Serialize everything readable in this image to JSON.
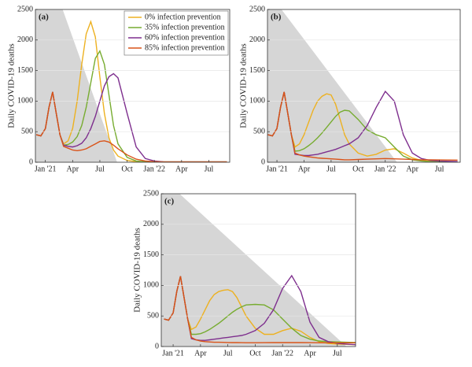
{
  "chart_data": [
    {
      "type": "line",
      "panel_label": "(a)",
      "y_label": "Daily COVID-19 deaths",
      "grid": true,
      "legend": "upper right",
      "xlim": [
        -1.1,
        20.3
      ],
      "ylim": [
        0,
        2500
      ],
      "yticks": [
        0,
        500,
        1000,
        1500,
        2000,
        2500
      ],
      "xticks": [
        {
          "value": 0,
          "label": "Jan '21"
        },
        {
          "value": 3,
          "label": "Apr"
        },
        {
          "value": 6,
          "label": "Jul"
        },
        {
          "value": 9,
          "label": "Oct"
        },
        {
          "value": 12,
          "label": "Jan '22"
        },
        {
          "value": 15,
          "label": "Apr"
        },
        {
          "value": 18,
          "label": "Jul"
        }
      ],
      "shade": {
        "color": "#d6d6d6",
        "x": [
          1.9,
          7.9
        ],
        "y": [
          2500,
          0
        ]
      },
      "x": [
        -1,
        -0.5,
        0,
        0.4,
        0.8,
        1.2,
        1.6,
        2,
        2.5,
        3,
        3.5,
        4,
        4.5,
        5,
        5.5,
        6,
        6.5,
        7,
        7.5,
        8,
        9,
        10,
        11,
        12,
        13,
        14,
        15,
        16,
        17,
        18,
        19,
        20
      ],
      "series": [
        {
          "name": "0% infection prevention",
          "color": "#EDB120",
          "values": [
            450,
            430,
            550,
            900,
            1150,
            800,
            450,
            300,
            350,
            550,
            1000,
            1600,
            2100,
            2300,
            2050,
            1400,
            800,
            400,
            200,
            100,
            30,
            10,
            5,
            5,
            5,
            5,
            5,
            5,
            5,
            5,
            5,
            5
          ]
        },
        {
          "name": "35% infection prevention",
          "color": "#77AC30",
          "values": [
            450,
            430,
            550,
            900,
            1150,
            800,
            450,
            280,
            290,
            330,
            420,
            600,
            900,
            1300,
            1700,
            1820,
            1600,
            1100,
            600,
            300,
            80,
            20,
            8,
            5,
            5,
            5,
            5,
            5,
            5,
            5,
            5,
            5
          ]
        },
        {
          "name": "60% infection prevention",
          "color": "#7E2F8E",
          "values": [
            450,
            430,
            550,
            900,
            1150,
            800,
            450,
            280,
            260,
            250,
            270,
            310,
            400,
            550,
            750,
            1000,
            1250,
            1400,
            1450,
            1380,
            800,
            250,
            60,
            20,
            8,
            5,
            5,
            5,
            5,
            5,
            5,
            5
          ]
        },
        {
          "name": "85% infection prevention",
          "color": "#D95319",
          "values": [
            450,
            430,
            550,
            900,
            1150,
            800,
            450,
            260,
            230,
            200,
            190,
            200,
            220,
            260,
            300,
            340,
            350,
            330,
            280,
            220,
            120,
            50,
            20,
            10,
            5,
            5,
            5,
            5,
            5,
            5,
            5,
            5
          ]
        }
      ]
    },
    {
      "type": "line",
      "panel_label": "(b)",
      "y_label": "Daily COVID-19 deaths",
      "grid": true,
      "xlim": [
        -1.05,
        20.3
      ],
      "ylim": [
        0,
        2500
      ],
      "yticks": [
        0,
        500,
        1000,
        1500,
        2000,
        2500
      ],
      "xticks": [
        {
          "value": 0,
          "label": "Jan '21"
        },
        {
          "value": 3,
          "label": "Apr"
        },
        {
          "value": 6,
          "label": "Jul"
        },
        {
          "value": 9,
          "label": "Oct"
        },
        {
          "value": 12,
          "label": "Jan '22"
        },
        {
          "value": 15,
          "label": "Apr"
        },
        {
          "value": 18,
          "label": "Jul"
        }
      ],
      "shade": {
        "color": "#d6d6d6",
        "x": [
          0.5,
          13.3
        ],
        "y": [
          2500,
          0
        ]
      },
      "x": [
        -1,
        -0.5,
        0,
        0.4,
        0.8,
        1.2,
        1.6,
        2,
        2.5,
        3,
        3.5,
        4,
        4.5,
        5,
        5.5,
        6,
        6.5,
        7,
        7.5,
        8,
        9,
        10,
        11,
        12,
        13,
        14,
        15,
        16,
        17,
        18,
        19,
        20
      ],
      "series": [
        {
          "color": "#EDB120",
          "values": [
            450,
            430,
            550,
            900,
            1150,
            800,
            450,
            250,
            300,
            450,
            650,
            850,
            1000,
            1080,
            1120,
            1100,
            950,
            700,
            450,
            300,
            150,
            100,
            130,
            200,
            220,
            150,
            70,
            30,
            15,
            10,
            8,
            5
          ]
        },
        {
          "color": "#77AC30",
          "values": [
            450,
            430,
            550,
            900,
            1150,
            800,
            450,
            180,
            190,
            220,
            270,
            330,
            400,
            480,
            570,
            660,
            750,
            820,
            850,
            840,
            700,
            530,
            450,
            400,
            250,
            100,
            40,
            20,
            10,
            8,
            6,
            5
          ]
        },
        {
          "color": "#7E2F8E",
          "values": [
            450,
            430,
            550,
            900,
            1150,
            800,
            450,
            130,
            120,
            110,
            110,
            120,
            130,
            150,
            170,
            190,
            210,
            240,
            270,
            300,
            400,
            600,
            900,
            1160,
            1000,
            450,
            150,
            60,
            30,
            20,
            15,
            12
          ]
        },
        {
          "color": "#D95319",
          "values": [
            450,
            430,
            550,
            900,
            1150,
            800,
            450,
            150,
            120,
            100,
            90,
            80,
            70,
            65,
            60,
            55,
            50,
            45,
            40,
            40,
            45,
            50,
            55,
            60,
            55,
            50,
            45,
            40,
            40,
            38,
            36,
            35
          ]
        }
      ]
    },
    {
      "type": "line",
      "panel_label": "(c)",
      "y_label": "Daily COVID-19 deaths",
      "grid": true,
      "xlim": [
        -1.3,
        20
      ],
      "ylim": [
        0,
        2500
      ],
      "yticks": [
        0,
        500,
        1000,
        1500,
        2000,
        2500
      ],
      "xticks": [
        {
          "value": 0,
          "label": "Jan '21"
        },
        {
          "value": 3,
          "label": "Apr"
        },
        {
          "value": 6,
          "label": "Jul"
        },
        {
          "value": 9,
          "label": "Oct"
        },
        {
          "value": 12,
          "label": "Jan '22"
        },
        {
          "value": 15,
          "label": "Apr"
        },
        {
          "value": 18,
          "label": "Jul"
        }
      ],
      "shade": {
        "color": "#d6d6d6",
        "x": [
          0.7,
          19
        ],
        "y": [
          2500,
          0
        ]
      },
      "x": [
        -1,
        -0.5,
        0,
        0.4,
        0.8,
        1.2,
        1.6,
        2,
        2.5,
        3,
        3.5,
        4,
        4.5,
        5,
        5.5,
        6,
        6.5,
        7,
        7.5,
        8,
        9,
        10,
        11,
        12,
        13,
        14,
        15,
        16,
        17,
        18,
        19,
        20
      ],
      "series": [
        {
          "color": "#EDB120",
          "values": [
            450,
            430,
            550,
            900,
            1150,
            800,
            450,
            280,
            320,
            450,
            600,
            750,
            850,
            900,
            920,
            930,
            900,
            800,
            650,
            500,
            300,
            200,
            200,
            260,
            300,
            250,
            150,
            80,
            50,
            40,
            35,
            30
          ]
        },
        {
          "color": "#77AC30",
          "values": [
            450,
            430,
            550,
            900,
            1150,
            800,
            450,
            200,
            200,
            210,
            240,
            280,
            330,
            380,
            440,
            500,
            560,
            610,
            650,
            680,
            690,
            680,
            600,
            450,
            300,
            180,
            120,
            90,
            80,
            75,
            70,
            65
          ]
        },
        {
          "color": "#7E2F8E",
          "values": [
            450,
            430,
            550,
            900,
            1150,
            800,
            450,
            130,
            110,
            100,
            100,
            110,
            120,
            130,
            140,
            150,
            160,
            170,
            180,
            200,
            260,
            380,
            600,
            950,
            1160,
            900,
            400,
            150,
            80,
            50,
            40,
            30
          ]
        },
        {
          "color": "#D95319",
          "values": [
            450,
            430,
            550,
            900,
            1150,
            800,
            450,
            150,
            110,
            90,
            80,
            75,
            70,
            70,
            68,
            66,
            65,
            64,
            63,
            62,
            62,
            63,
            64,
            65,
            65,
            64,
            63,
            62,
            61,
            60,
            60,
            60
          ]
        }
      ]
    }
  ]
}
